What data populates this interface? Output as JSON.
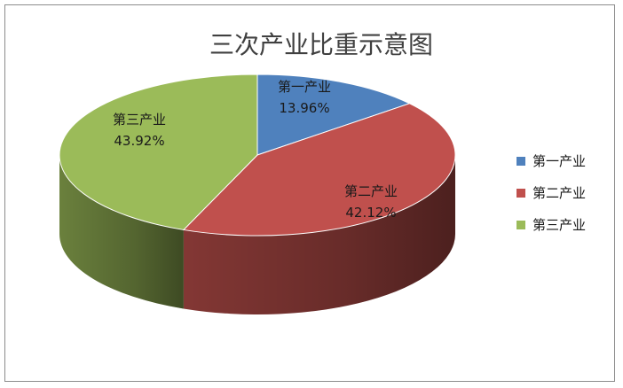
{
  "chart_data": {
    "type": "pie",
    "title": "三次产业比重示意图",
    "categories": [
      "第一产业",
      "第二产业",
      "第三产业"
    ],
    "values": [
      13.96,
      42.12,
      43.92
    ],
    "value_labels": [
      "13.96%",
      "42.12%",
      "43.92%"
    ],
    "colors": [
      "#4f81bd",
      "#c0504d",
      "#9bbb59"
    ],
    "legend_placement": "right",
    "style": "3d"
  }
}
